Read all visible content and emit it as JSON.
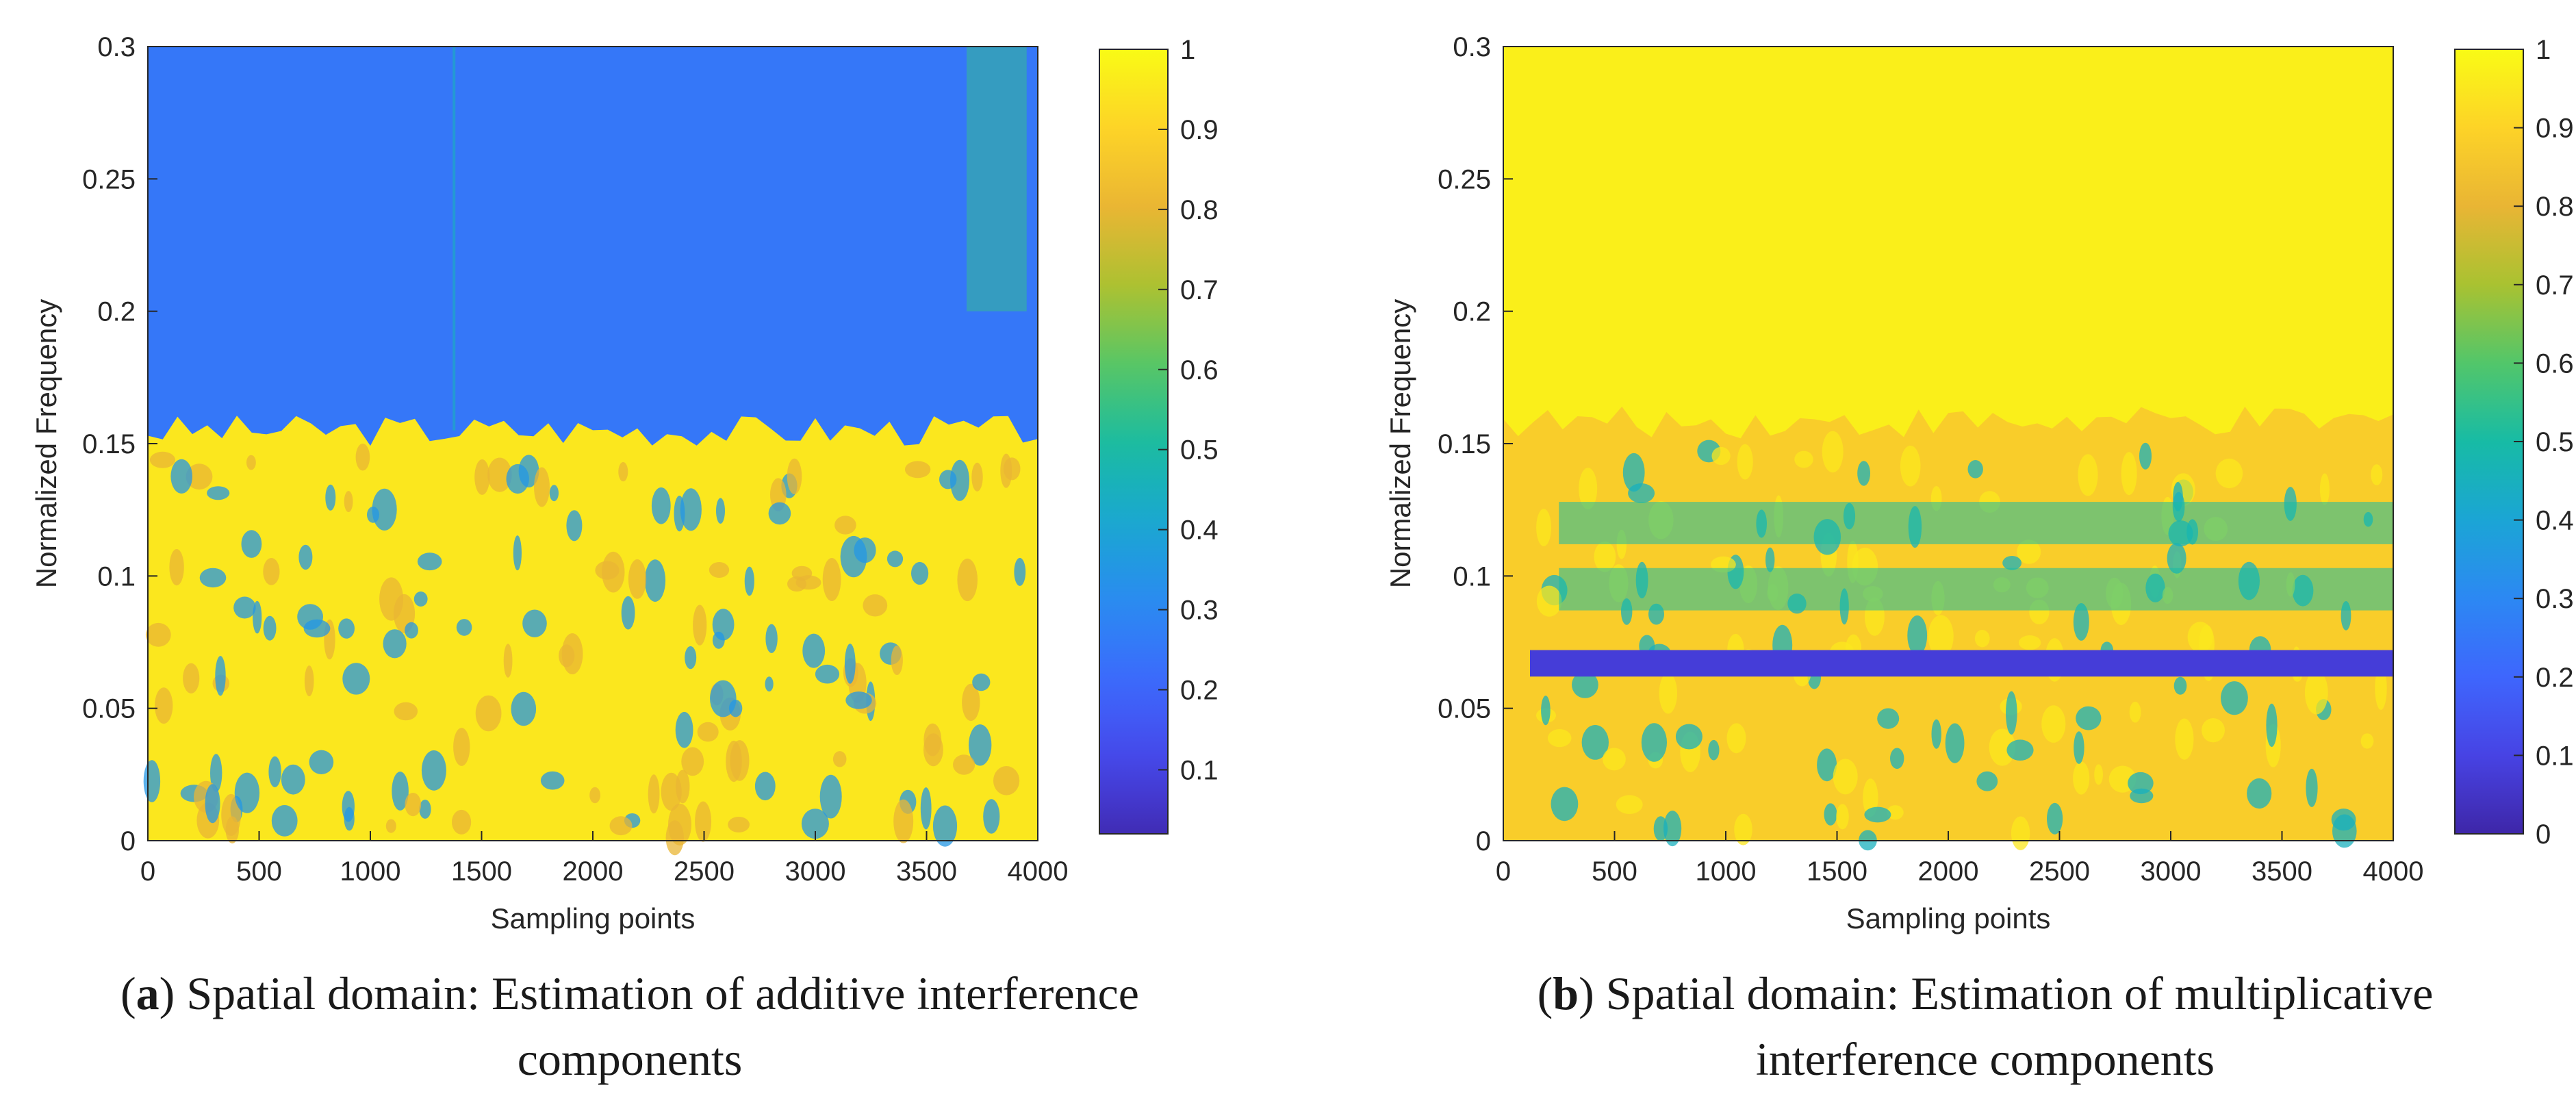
{
  "chart_data": [
    {
      "type": "heatmap",
      "panel": "a",
      "caption_letter": "a",
      "caption_line1": "Spatial domain: Estimation of additive interference",
      "caption_line2": "components",
      "xlabel": "Sampling points",
      "ylabel": "Normalized Frequency",
      "xlim": [
        0,
        4000
      ],
      "ylim": [
        0,
        0.3
      ],
      "xticks": [
        "0",
        "500",
        "1000",
        "1500",
        "2000",
        "2500",
        "3000",
        "3500",
        "4000"
      ],
      "yticks": [
        "0",
        "0.05",
        "0.1",
        "0.15",
        "0.2",
        "0.25",
        "0.3"
      ],
      "colorbar": {
        "range": [
          0.02,
          1
        ],
        "ticks": [
          "0.1",
          "0.2",
          "0.3",
          "0.4",
          "0.5",
          "0.6",
          "0.7",
          "0.8",
          "0.9",
          "1"
        ]
      },
      "description_values": {
        "upper_region_value": 0.25,
        "lower_region_value": 0.95,
        "boundary_frequency": 0.155
      }
    },
    {
      "type": "heatmap",
      "panel": "b",
      "caption_letter": "b",
      "caption_line1": "Spatial domain: Estimation of multiplicative",
      "caption_line2": "interference components",
      "xlabel": "Sampling points",
      "ylabel": "Normalized Frequency",
      "xlim": [
        0,
        4000
      ],
      "ylim": [
        0,
        0.3
      ],
      "xticks": [
        "0",
        "500",
        "1000",
        "1500",
        "2000",
        "2500",
        "3000",
        "3500",
        "4000"
      ],
      "yticks": [
        "0",
        "0.05",
        "0.1",
        "0.15",
        "0.2",
        "0.25",
        "0.3"
      ],
      "colorbar": {
        "range": [
          0,
          1
        ],
        "ticks": [
          "0",
          "0.1",
          "0.2",
          "0.3",
          "0.4",
          "0.5",
          "0.6",
          "0.7",
          "0.8",
          "0.9",
          "1"
        ]
      },
      "description_values": {
        "upper_region_value": 0.97,
        "dark_band_frequency": 0.067,
        "dark_band_value": 0.08,
        "boundary_frequency": 0.158
      }
    }
  ],
  "colormap": [
    "#3e26a8",
    "#4743e4",
    "#3e66fd",
    "#2c88f3",
    "#1ba5d5",
    "#17bba5",
    "#52c66a",
    "#a9c231",
    "#e9b534",
    "#fdd327",
    "#f9fb15"
  ]
}
